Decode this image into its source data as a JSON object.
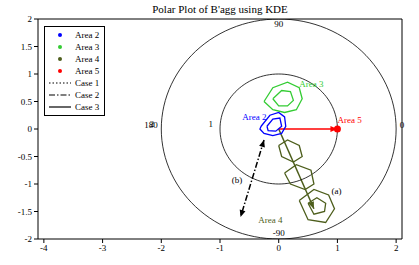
{
  "chart_data": {
    "type": "polar_contour",
    "title": "Polar Plot of B'agg using KDE",
    "xlim": [
      -4.1,
      2.1
    ],
    "xticks": [
      -4,
      -3,
      -2,
      -1,
      0,
      1,
      2
    ],
    "ylim": [
      -2,
      2
    ],
    "yticks": [
      -2,
      -1.5,
      -1,
      -0.5,
      0,
      0.5,
      1,
      1.5,
      2
    ],
    "radial_ticks": [
      1,
      2
    ],
    "angle_ticks": [
      90,
      180,
      -90,
      0
    ],
    "legend": "upper left",
    "series": [
      {
        "name": "Area 2",
        "color": "#0000ff",
        "marker": "dot",
        "line_style": "solid",
        "label": {
          "x": -0.62,
          "y": 0.2
        },
        "contours": [
          {
            "x": [
              -0.3,
              -0.15,
              0.0,
              0.1,
              0.12,
              0.05,
              -0.1,
              -0.25,
              -0.32,
              -0.3
            ],
            "y": [
              0.05,
              0.25,
              0.3,
              0.22,
              0.05,
              -0.08,
              -0.12,
              -0.08,
              0.0,
              0.05
            ]
          },
          {
            "x": [
              -0.2,
              -0.1,
              0.02,
              0.05,
              -0.05,
              -0.18,
              -0.2
            ],
            "y": [
              0.05,
              0.18,
              0.2,
              0.05,
              -0.04,
              -0.03,
              0.05
            ]
          }
        ]
      },
      {
        "name": "Area 3",
        "color": "#33cc33",
        "marker": "dot",
        "line_style": "solid",
        "label": {
          "x": 0.35,
          "y": 0.8
        },
        "contours": [
          {
            "x": [
              -0.25,
              -0.1,
              0.15,
              0.35,
              0.4,
              0.3,
              0.1,
              -0.1,
              -0.25
            ],
            "y": [
              0.5,
              0.75,
              0.85,
              0.75,
              0.55,
              0.35,
              0.3,
              0.35,
              0.5
            ]
          },
          {
            "x": [
              -0.1,
              0.05,
              0.2,
              0.25,
              0.15,
              0.0,
              -0.1
            ],
            "y": [
              0.55,
              0.7,
              0.68,
              0.52,
              0.42,
              0.42,
              0.55
            ]
          }
        ]
      },
      {
        "name": "Area 4",
        "color": "#4d5e1c",
        "marker": "dot",
        "line_style": "solid",
        "label": {
          "x": -0.35,
          "y": -1.68
        },
        "vector": {
          "x": [
            0,
            0.6
          ],
          "y": [
            0,
            -1.45
          ]
        },
        "contours": [
          {
            "x": [
              0.0,
              0.15,
              0.35,
              0.4,
              0.25,
              0.05,
              0.0
            ],
            "y": [
              -0.3,
              -0.2,
              -0.3,
              -0.5,
              -0.6,
              -0.5,
              -0.3
            ]
          },
          {
            "x": [
              0.1,
              0.3,
              0.55,
              0.6,
              0.45,
              0.2,
              0.1
            ],
            "y": [
              -0.8,
              -0.65,
              -0.75,
              -1.0,
              -1.1,
              -1.0,
              -0.8
            ]
          },
          {
            "x": [
              0.35,
              0.6,
              0.85,
              0.95,
              0.8,
              0.5,
              0.35
            ],
            "y": [
              -1.3,
              -1.1,
              -1.2,
              -1.45,
              -1.7,
              -1.65,
              -1.3
            ]
          },
          {
            "x": [
              0.5,
              0.65,
              0.8,
              0.78,
              0.6,
              0.5
            ],
            "y": [
              -1.35,
              -1.25,
              -1.35,
              -1.5,
              -1.55,
              -1.35
            ]
          }
        ]
      },
      {
        "name": "Area 5",
        "color": "#ff0000",
        "marker": "dot",
        "line_style": "solid",
        "label": {
          "x": 1.0,
          "y": 0.14
        },
        "vector": {
          "x": [
            0,
            1
          ],
          "y": [
            0,
            0
          ]
        },
        "points": {
          "x": [
            1
          ],
          "y": [
            0
          ]
        }
      },
      {
        "name": "Case 1",
        "color": "#000000",
        "line_style": "dotted"
      },
      {
        "name": "Case 2",
        "color": "#000000",
        "line_style": "dashdot",
        "x": [
          -0.25,
          -0.65
        ],
        "y": [
          -0.2,
          -1.6
        ]
      },
      {
        "name": "Case 3",
        "color": "#000000",
        "line_style": "solid"
      }
    ],
    "annotations": [
      {
        "text": "(a)",
        "x": 0.9,
        "y": -1.15
      },
      {
        "text": "(b)",
        "x": -0.8,
        "y": -0.95
      }
    ]
  }
}
